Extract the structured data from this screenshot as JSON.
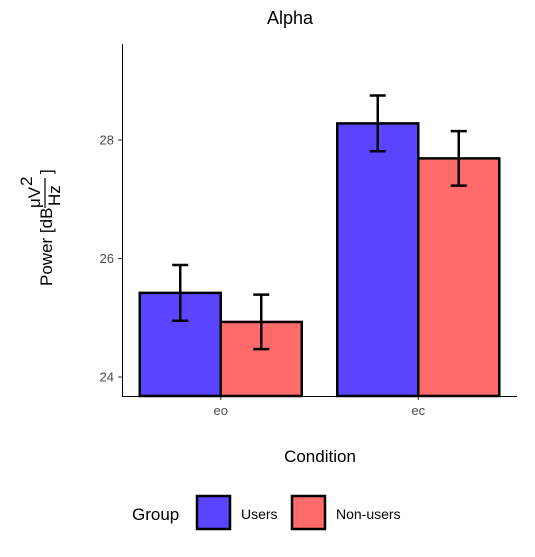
{
  "chart_data": {
    "type": "bar",
    "title": "Alpha",
    "xlabel": "Condition",
    "ylabel": {
      "prefix": "Power [dB",
      "numerator": "μV",
      "exponent": "2",
      "denominator": "Hz",
      "suffix": "]"
    },
    "categories": [
      "eo",
      "ec"
    ],
    "series": [
      {
        "name": "Users",
        "values": [
          25.42,
          28.28
        ],
        "error": [
          0.47,
          0.47
        ],
        "color": "#5a44ff"
      },
      {
        "name": "Non-users",
        "values": [
          24.93,
          27.69
        ],
        "error": [
          0.46,
          0.46
        ],
        "color": "#ff6b6b"
      }
    ],
    "ylim": [
      23.68,
      29.62
    ],
    "yticks": [
      24,
      26,
      28
    ],
    "grid": false,
    "legend": {
      "title": "Group",
      "position": "bottom"
    }
  }
}
